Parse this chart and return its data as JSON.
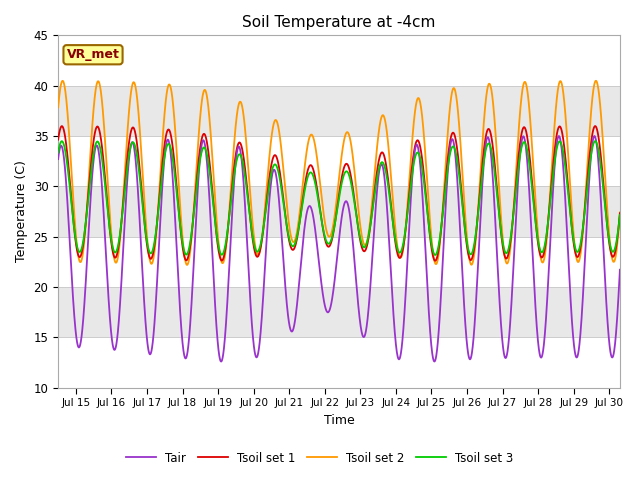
{
  "title": "Soil Temperature at -4cm",
  "xlabel": "Time",
  "ylabel": "Temperature (C)",
  "ylim": [
    10,
    45
  ],
  "xlim_days": [
    14.5,
    30.3
  ],
  "xtick_days": [
    15,
    16,
    17,
    18,
    19,
    20,
    21,
    22,
    23,
    24,
    25,
    26,
    27,
    28,
    29,
    30
  ],
  "xtick_labels": [
    "Jul 15",
    "Jul 16",
    "Jul 17",
    "Jul 18",
    "Jul 19",
    "Jul 20",
    "Jul 21",
    "Jul 22",
    "Jul 23",
    "Jul 24",
    "Jul 25",
    "Jul 26",
    "Jul 27",
    "Jul 28",
    "Jul 29",
    "Jul 30"
  ],
  "ytick_vals": [
    10,
    15,
    20,
    25,
    30,
    35,
    40,
    45
  ],
  "colors": {
    "Tair": "#9933cc",
    "Tsoil1": "#dd0000",
    "Tsoil2": "#ff9900",
    "Tsoil3": "#00cc00"
  },
  "legend_labels": [
    "Tair",
    "Tsoil set 1",
    "Tsoil set 2",
    "Tsoil set 3"
  ],
  "vrmet_label": "VR_met",
  "fig_bg": "#ffffff",
  "band_colors": [
    "#ffffff",
    "#e8e8e8"
  ],
  "grid_color": "#cccccc",
  "annotation_bg": "#ffff99",
  "annotation_border": "#996600"
}
